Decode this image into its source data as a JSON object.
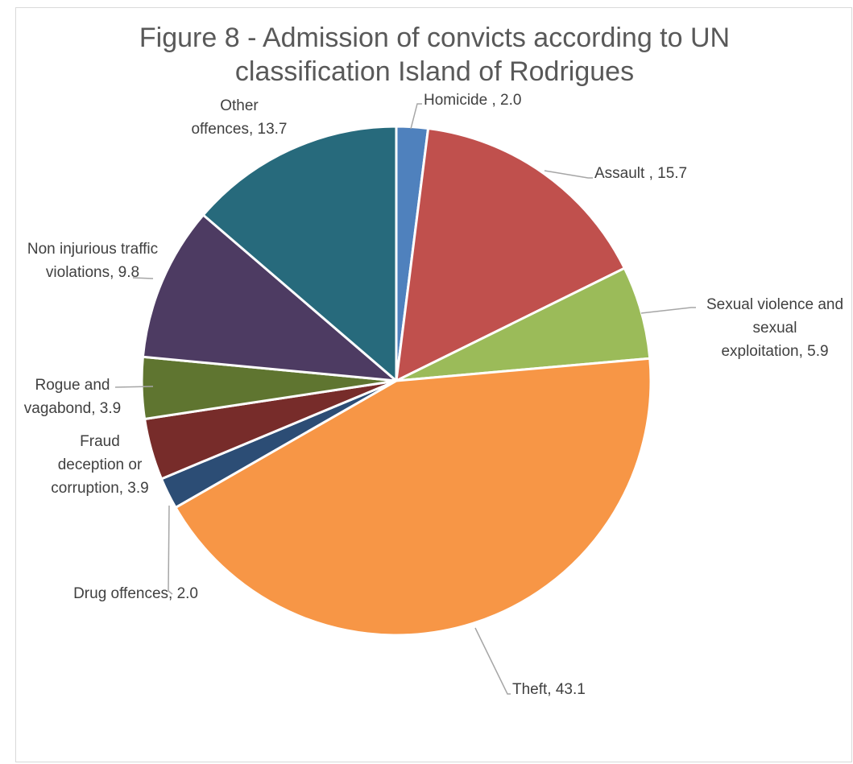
{
  "chart_data": {
    "type": "pie",
    "title_line1": "Figure 8 - Admission of convicts according to UN",
    "title_line2": "classification Island of Rodrigues",
    "slices": [
      {
        "name": "Homicide",
        "value": 2.0,
        "color": "#4f81bd",
        "label_lines": [
          "Homicide , 2.0"
        ]
      },
      {
        "name": "Assault",
        "value": 15.7,
        "color": "#c0504d",
        "label_lines": [
          "Assault , 15.7"
        ]
      },
      {
        "name": "Sexual violence and sexual exploitation",
        "value": 5.9,
        "color": "#9bbb59",
        "label_lines": [
          "Sexual violence and",
          "sexual",
          "exploitation, 5.9"
        ]
      },
      {
        "name": "Theft",
        "value": 43.1,
        "color": "#f79646",
        "label_lines": [
          "Theft, 43.1"
        ]
      },
      {
        "name": "Drug offences",
        "value": 2.0,
        "color": "#2c4d75",
        "label_lines": [
          "Drug offences, 2.0"
        ]
      },
      {
        "name": "Fraud deception or corruption",
        "value": 3.9,
        "color": "#772c2a",
        "label_lines": [
          "Fraud",
          "deception or",
          "corruption, 3.9"
        ]
      },
      {
        "name": "Rogue and vagabond",
        "value": 3.9,
        "color": "#5f7530",
        "label_lines": [
          "Rogue and",
          "vagabond, 3.9"
        ]
      },
      {
        "name": "Non injurious traffic violations",
        "value": 9.8,
        "color": "#4d3b62",
        "label_lines": [
          "Non injurious traffic",
          "violations, 9.8"
        ]
      },
      {
        "name": "Other offences",
        "value": 13.7,
        "color": "#276a7c",
        "label_lines": [
          "Other",
          "offences, 13.7"
        ]
      }
    ]
  }
}
